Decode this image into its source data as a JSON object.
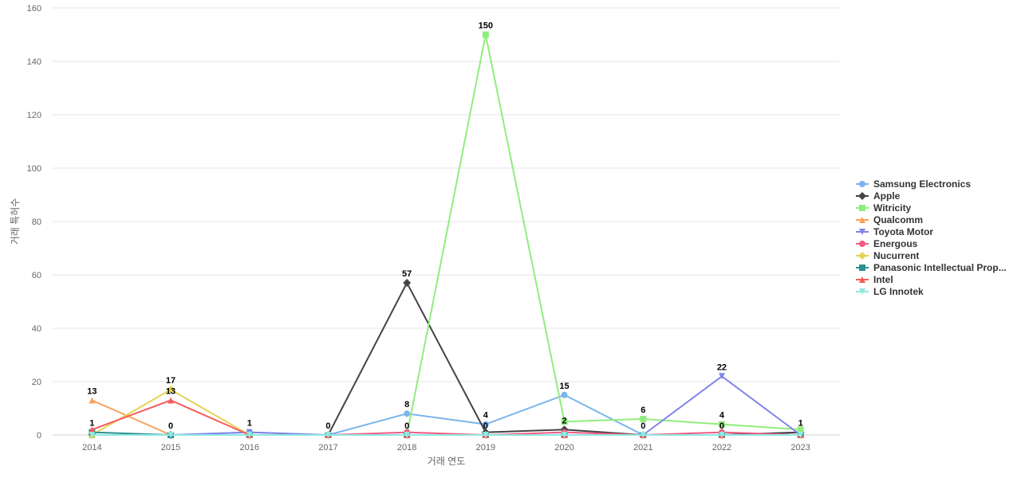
{
  "chart_data": {
    "type": "line",
    "title": "",
    "xlabel": "거래 연도",
    "ylabel": "거래 특허수",
    "categories": [
      "2014",
      "2015",
      "2016",
      "2017",
      "2018",
      "2019",
      "2020",
      "2021",
      "2022",
      "2023"
    ],
    "ylim": [
      0,
      160
    ],
    "yticks": [
      0,
      20,
      40,
      60,
      80,
      100,
      120,
      140,
      160
    ],
    "grid": true,
    "legend_position": "right",
    "series": [
      {
        "name": "Samsung Electronics",
        "color": "#7cb5ec",
        "marker": "circle",
        "values": [
          0,
          0,
          1,
          0,
          8,
          4,
          15,
          0,
          0,
          1
        ]
      },
      {
        "name": "Apple",
        "color": "#434348",
        "marker": "diamond",
        "values": [
          0,
          0,
          0,
          0,
          57,
          1,
          2,
          0,
          0,
          1
        ]
      },
      {
        "name": "Witricity",
        "color": "#90ed7d",
        "marker": "square",
        "values": [
          0,
          0,
          0,
          0,
          0,
          150,
          5,
          6,
          4,
          2
        ]
      },
      {
        "name": "Qualcomm",
        "color": "#f7a35c",
        "marker": "triangle",
        "values": [
          13,
          0,
          0,
          0,
          0,
          0,
          0,
          0,
          0,
          0
        ]
      },
      {
        "name": "Toyota Motor",
        "color": "#8085e9",
        "marker": "triangle-down",
        "values": [
          0,
          0,
          1,
          0,
          0,
          0,
          0,
          0,
          22,
          0
        ]
      },
      {
        "name": "Energous",
        "color": "#f15c80",
        "marker": "circle",
        "values": [
          0,
          0,
          0,
          0,
          1,
          0,
          1,
          0,
          1,
          0
        ]
      },
      {
        "name": "Nucurrent",
        "color": "#e4d354",
        "marker": "diamond",
        "values": [
          0,
          17,
          0,
          0,
          0,
          0,
          0,
          0,
          0,
          0
        ]
      },
      {
        "name": "Panasonic Intellectual Prop...",
        "color": "#2b908f",
        "marker": "square",
        "values": [
          1,
          0,
          0,
          0,
          0,
          0,
          0,
          0,
          0,
          0
        ]
      },
      {
        "name": "Intel",
        "color": "#f45b5b",
        "marker": "triangle",
        "values": [
          2,
          13,
          0,
          0,
          0,
          0,
          0,
          0,
          0,
          0
        ]
      },
      {
        "name": "LG Innotek",
        "color": "#91e8e1",
        "marker": "triangle-down",
        "values": [
          0,
          0,
          0,
          0,
          0,
          0,
          0,
          0,
          0,
          0
        ]
      }
    ],
    "data_labels": [
      {
        "series": 3,
        "index": 0,
        "text": "13"
      },
      {
        "series": 7,
        "index": 0,
        "text": "1"
      },
      {
        "series": 6,
        "index": 1,
        "text": "17"
      },
      {
        "series": 8,
        "index": 1,
        "text": "13"
      },
      {
        "series": 0,
        "index": 1,
        "text": "0"
      },
      {
        "series": 4,
        "index": 2,
        "text": "1"
      },
      {
        "series": 0,
        "index": 3,
        "text": "0"
      },
      {
        "series": 1,
        "index": 4,
        "text": "57"
      },
      {
        "series": 0,
        "index": 4,
        "text": "8"
      },
      {
        "series": 3,
        "index": 4,
        "text": "0"
      },
      {
        "series": 2,
        "index": 5,
        "text": "150"
      },
      {
        "series": 0,
        "index": 5,
        "text": "4"
      },
      {
        "series": 3,
        "index": 5,
        "text": "0"
      },
      {
        "series": 0,
        "index": 6,
        "text": "15"
      },
      {
        "series": 1,
        "index": 6,
        "text": "2"
      },
      {
        "series": 2,
        "index": 7,
        "text": "6"
      },
      {
        "series": 3,
        "index": 7,
        "text": "0"
      },
      {
        "series": 4,
        "index": 8,
        "text": "22"
      },
      {
        "series": 2,
        "index": 8,
        "text": "4"
      },
      {
        "series": 3,
        "index": 8,
        "text": "0"
      },
      {
        "series": 0,
        "index": 9,
        "text": "1"
      }
    ]
  }
}
